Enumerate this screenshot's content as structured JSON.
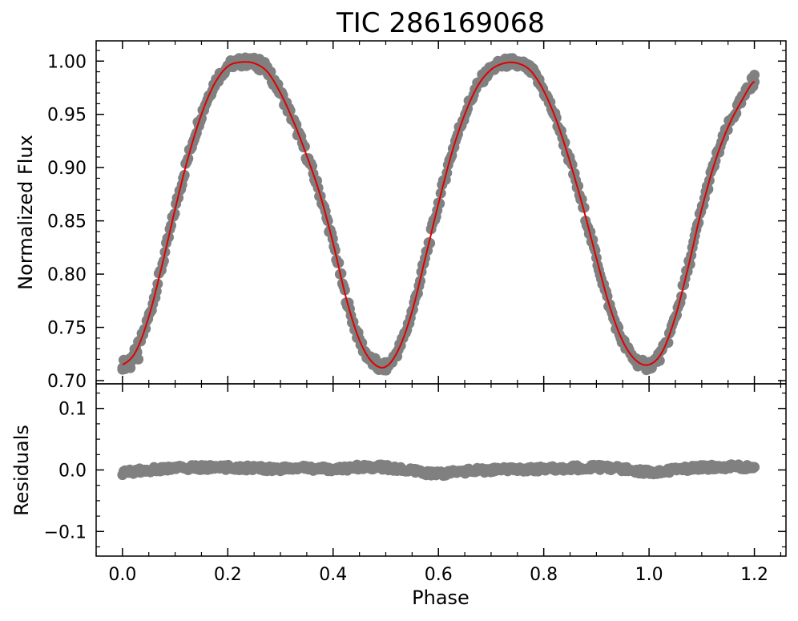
{
  "chart_data": [
    {
      "panel": "top",
      "type": "scatter",
      "title": "TIC 286169068",
      "xlabel": "",
      "ylabel": "Normalized Flux",
      "xlim": [
        -0.05,
        1.26
      ],
      "ylim": [
        0.697,
        1.019
      ],
      "xticks": [
        0.0,
        0.2,
        0.4,
        0.6,
        0.8,
        1.0,
        1.2
      ],
      "yticks": [
        0.7,
        0.75,
        0.8,
        0.85,
        0.9,
        0.95,
        1.0
      ],
      "ytick_labels": [
        "0.70",
        "0.75",
        "0.80",
        "0.85",
        "0.90",
        "0.95",
        "1.00"
      ],
      "grid": false,
      "model_curve": {
        "x": [
          0.0,
          0.025,
          0.05,
          0.075,
          0.1,
          0.125,
          0.15,
          0.175,
          0.2,
          0.225,
          0.25,
          0.275,
          0.3,
          0.325,
          0.35,
          0.375,
          0.4,
          0.425,
          0.45,
          0.475,
          0.5,
          0.525,
          0.55,
          0.575,
          0.6,
          0.625,
          0.65,
          0.675,
          0.7,
          0.725,
          0.75,
          0.775,
          0.8,
          0.825,
          0.85,
          0.875,
          0.9,
          0.925,
          0.95,
          0.975,
          1.0,
          1.025,
          1.05,
          1.075,
          1.1,
          1.125,
          1.15,
          1.175,
          1.2
        ],
        "y": [
          0.715,
          0.727,
          0.76,
          0.808,
          0.861,
          0.91,
          0.95,
          0.979,
          0.995,
          0.999,
          0.998,
          0.99,
          0.97,
          0.943,
          0.911,
          0.875,
          0.829,
          0.777,
          0.738,
          0.717,
          0.713,
          0.73,
          0.765,
          0.815,
          0.866,
          0.913,
          0.95,
          0.977,
          0.992,
          0.998,
          0.998,
          0.991,
          0.972,
          0.943,
          0.905,
          0.862,
          0.815,
          0.77,
          0.737,
          0.719,
          0.715,
          0.727,
          0.76,
          0.808,
          0.861,
          0.905,
          0.938,
          0.962,
          0.981
        ]
      },
      "points": {
        "x": [
          0.0,
          0.005,
          0.015,
          0.03,
          0.2,
          0.22,
          0.24,
          0.25,
          0.26,
          0.27,
          0.48,
          0.49,
          0.5,
          0.51,
          0.52,
          0.72,
          0.74,
          0.75,
          0.76,
          0.78,
          0.985,
          0.995,
          1.0,
          1.005,
          1.015,
          1.195,
          1.2
        ],
        "y": [
          0.712,
          0.711,
          0.712,
          0.72,
          0.996,
          1.0,
          1.002,
          1.003,
          1.002,
          0.999,
          0.721,
          0.716,
          0.716,
          0.718,
          0.726,
          0.995,
          0.997,
          0.995,
          0.997,
          0.993,
          0.716,
          0.71,
          0.711,
          0.712,
          0.718,
          0.984,
          0.987
        ]
      }
    },
    {
      "panel": "bottom",
      "type": "scatter",
      "title": "",
      "xlabel": "Phase",
      "ylabel": "Residuals",
      "xlim": [
        -0.05,
        1.26
      ],
      "ylim": [
        -0.14,
        0.14
      ],
      "xticks": [
        0.0,
        0.2,
        0.4,
        0.6,
        0.8,
        1.0,
        1.2
      ],
      "xtick_labels": [
        "0.0",
        "0.2",
        "0.4",
        "0.6",
        "0.8",
        "1.0",
        "1.2"
      ],
      "yticks": [
        -0.1,
        0.0,
        0.1
      ],
      "ytick_labels": [
        "−0.1",
        "0.0",
        "0.1"
      ],
      "grid": false,
      "residual_trend": {
        "x": [
          0.0,
          0.05,
          0.1,
          0.15,
          0.2,
          0.25,
          0.3,
          0.35,
          0.4,
          0.45,
          0.5,
          0.55,
          0.6,
          0.65,
          0.7,
          0.75,
          0.8,
          0.85,
          0.9,
          0.95,
          1.0,
          1.05,
          1.1,
          1.15,
          1.2
        ],
        "y": [
          -0.004,
          0.0,
          0.003,
          0.004,
          0.004,
          0.003,
          0.002,
          0.003,
          0.001,
          0.005,
          0.004,
          -0.002,
          -0.006,
          -0.002,
          0.0,
          0.001,
          0.002,
          0.003,
          0.004,
          0.002,
          -0.003,
          0.0,
          0.004,
          0.005,
          0.004
        ]
      }
    }
  ],
  "colors": {
    "points": "#808080",
    "model": "#e00000",
    "axes": "#000000",
    "background": "#ffffff"
  }
}
